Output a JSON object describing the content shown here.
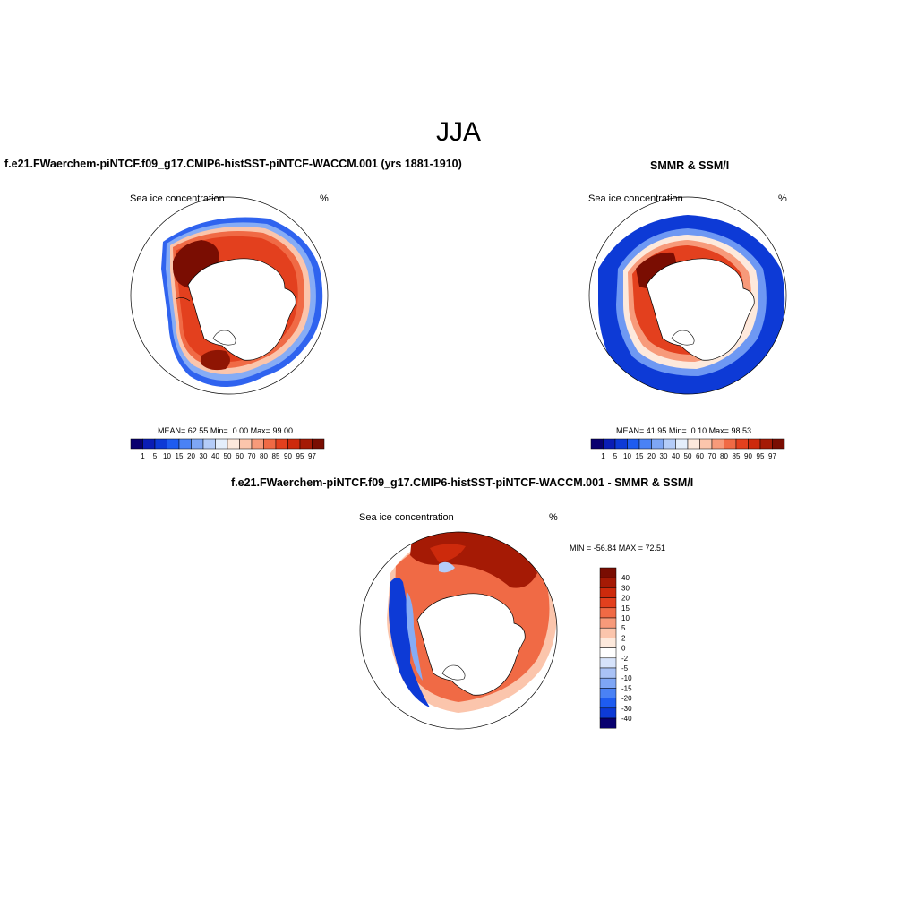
{
  "figure": {
    "title": "JJA",
    "unit": "%",
    "variable": "Sea ice concentration"
  },
  "panels": [
    {
      "id": "model",
      "title": "f.e21.FWaerchem-piNTCF.f09_g17.CMIP6-histSST-piNTCF-WACCM.001 (yrs 1881-1910)",
      "left_label": "Sea ice concentration",
      "right_label": "%",
      "stats": {
        "mean_label": "MEAN=",
        "mean": "62.55",
        "min_label": "Min=",
        "min": "0.00",
        "max_label": "Max=",
        "max": "99.00"
      }
    },
    {
      "id": "obs",
      "title": "SMMR & SSM/I",
      "left_label": "Sea ice concentration",
      "right_label": "%",
      "stats": {
        "mean_label": "MEAN=",
        "mean": "41.95",
        "min_label": "Min=",
        "min": "0.10",
        "max_label": "Max=",
        "max": "98.53"
      }
    },
    {
      "id": "diff",
      "title": "f.e21.FWaerchem-piNTCF.f09_g17.CMIP6-histSST-piNTCF-WACCM.001 - SMMR & SSM/I",
      "left_label": "Sea ice concentration",
      "right_label": "%",
      "stats_text": "MIN = -56.84 MAX =  72.51"
    }
  ],
  "colorbars": {
    "concentration": {
      "orientation": "horizontal",
      "labels": [
        "1",
        "5",
        "10",
        "15",
        "20",
        "30",
        "40",
        "50",
        "60",
        "70",
        "80",
        "85",
        "90",
        "95",
        "97"
      ],
      "colors": [
        "#08006f",
        "#0a1db5",
        "#0d3ad6",
        "#1e5cf0",
        "#4a82f5",
        "#7ea6f5",
        "#b4ccf8",
        "#e4eefb",
        "#fde9dc",
        "#fbc5ac",
        "#f79a7a",
        "#f06a45",
        "#e3401e",
        "#cd2a0c",
        "#a51a05",
        "#7a0d02"
      ]
    },
    "difference": {
      "orientation": "vertical",
      "labels": [
        "40",
        "30",
        "20",
        "15",
        "10",
        "5",
        "2",
        "0",
        "-2",
        "-5",
        "-10",
        "-15",
        "-20",
        "-30",
        "-40"
      ],
      "colors": [
        "#7a0d02",
        "#a51a05",
        "#cd2a0c",
        "#e3401e",
        "#f06a45",
        "#f79a7a",
        "#fbc5ac",
        "#fde9dc",
        "#ffffff",
        "#d6e3fb",
        "#a9c2f6",
        "#7ea6f5",
        "#4a82f5",
        "#1e5cf0",
        "#0d3ad6",
        "#08006f"
      ]
    }
  }
}
